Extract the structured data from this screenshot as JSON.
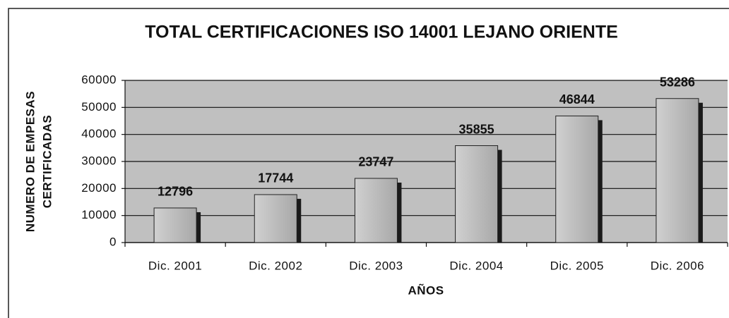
{
  "chart_data": {
    "type": "bar",
    "title": "TOTAL CERTIFICACIONES ISO 14001 LEJANO ORIENTE",
    "y_label": [
      "NUMERO DE EMPESAS",
      "CERTIFICADAS"
    ],
    "x_label": "AÑOS",
    "categories": [
      "Dic. 2001",
      "Dic. 2002",
      "Dic. 2003",
      "Dic. 2004",
      "Dic. 2005",
      "Dic. 2006"
    ],
    "values": [
      12796,
      17744,
      23747,
      35855,
      46844,
      53286
    ],
    "color": "#b8b8b8",
    "ylim": [
      0,
      60000
    ],
    "yticks": [
      0,
      10000,
      20000,
      30000,
      40000,
      50000,
      60000
    ],
    "grid": true
  }
}
